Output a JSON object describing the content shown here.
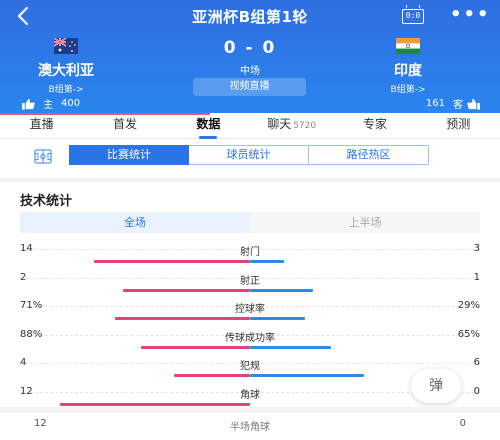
{
  "header": {
    "title": "亚洲杯B组第1轮",
    "score_icon": "0:0",
    "home": {
      "name": "澳大利亚",
      "group_link": "B组第->",
      "flag": "australia-flag"
    },
    "away": {
      "name": "印度",
      "group_link": "B组第->",
      "flag": "india-flag"
    },
    "score": "0 - 0",
    "status": "中场",
    "video_button": "视频直播",
    "home_vote": {
      "label": "主",
      "count": "400"
    },
    "away_vote": {
      "label": "客",
      "count": "161"
    }
  },
  "tabs": [
    {
      "label": "直播",
      "count": ""
    },
    {
      "label": "首发",
      "count": ""
    },
    {
      "label": "数据",
      "count": ""
    },
    {
      "label": "聊天",
      "count": "5720"
    },
    {
      "label": "专家",
      "count": ""
    },
    {
      "label": "预测",
      "count": ""
    }
  ],
  "active_tab": "数据",
  "segments": [
    "比赛统计",
    "球员统计",
    "路径热区"
  ],
  "active_segment": "比赛统计",
  "stats_section": {
    "title": "技术统计",
    "periods": [
      "全场",
      "上半场"
    ],
    "active_period": "全场",
    "rows": [
      {
        "name": "射门",
        "home": "14",
        "away": "3",
        "home_share": 0.82,
        "away_share": 0.18
      },
      {
        "name": "射正",
        "home": "2",
        "away": "1",
        "home_share": 0.667,
        "away_share": 0.333
      },
      {
        "name": "控球率",
        "home": "71%",
        "away": "29%",
        "home_share": 0.71,
        "away_share": 0.29
      },
      {
        "name": "传球成功率",
        "home": "88%",
        "away": "65%",
        "home_share": 0.575,
        "away_share": 0.425
      },
      {
        "name": "犯规",
        "home": "4",
        "away": "6",
        "home_share": 0.4,
        "away_share": 0.6
      },
      {
        "name": "角球",
        "home": "12",
        "away": "0",
        "home_share": 1.0,
        "away_share": 0.0
      }
    ]
  },
  "halftime_corners": {
    "name": "半场角球",
    "home": "12",
    "away": "0"
  },
  "float_button": "弹",
  "colors": {
    "header_blue": "#2c7ae8",
    "home_bar": "#e8407a",
    "away_bar": "#2d8ae8",
    "accent": "#2a74e6"
  }
}
